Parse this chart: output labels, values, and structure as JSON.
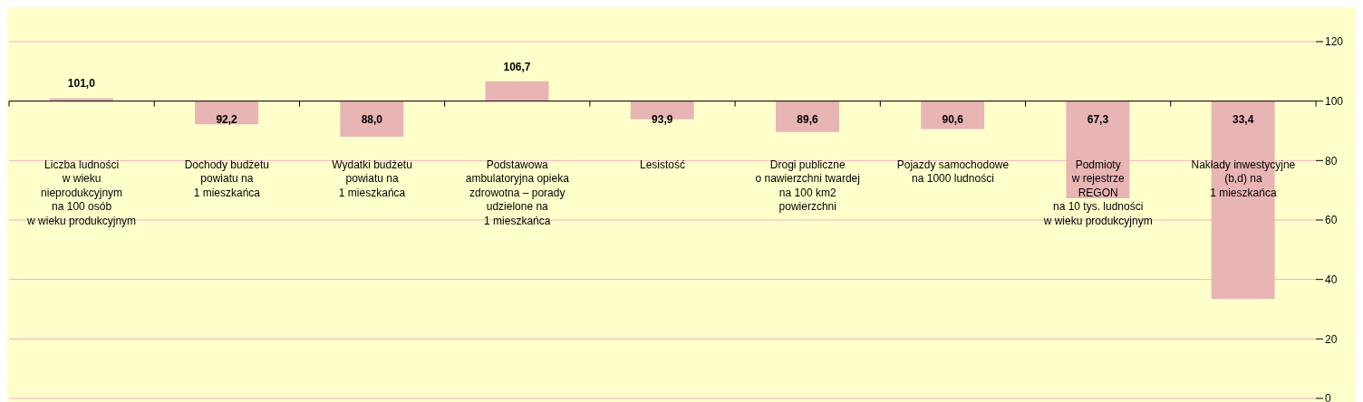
{
  "chart_data": {
    "type": "bar",
    "categories": [
      "Liczba ludności\nw wieku\nnieprodukcyjnym\nna 100 osób\nw wieku produkcyjnym",
      "Dochody budżetu\npowiatu na\n1 mieszkańca",
      "Wydatki budżetu\npowiatu na\n1 mieszkańca",
      "Podstawowa\nambulatoryjna opieka\nzdrowotna – porady\nudzielone na\n1 mieszkańca",
      "Lesistość",
      "Drogi publiczne\no nawierzchni twardej\nna 100 km2\npowierzchni",
      "Pojazdy samochodowe\nna 1000 ludności",
      "Podmioty\nw rejestrze\nREGON\nna 10 tys. ludności\nw wieku produkcyjnym",
      "Nakłady inwestycyjne\n(b,d) na\n1 mieszkańca"
    ],
    "values": [
      1.0,
      -7.8,
      -12.0,
      6.7,
      -6.1,
      -10.4,
      -9.4,
      -32.7,
      -66.6
    ],
    "base": [
      100,
      100,
      100,
      100,
      100,
      100,
      100,
      100,
      100
    ],
    "value_labels": [
      "101,0",
      "92,2",
      "88,0",
      "106,7",
      "93,9",
      "89,6",
      "90,6",
      "67,3",
      "33,4"
    ],
    "color": "#e8b4b4",
    "ref_lines": [
      {
        "axis": "y",
        "value": 100,
        "color": "#000000"
      }
    ],
    "ylim": [
      0,
      120
    ],
    "yticks": [
      0,
      20,
      40,
      60,
      80,
      100,
      120
    ],
    "grid": "y"
  }
}
